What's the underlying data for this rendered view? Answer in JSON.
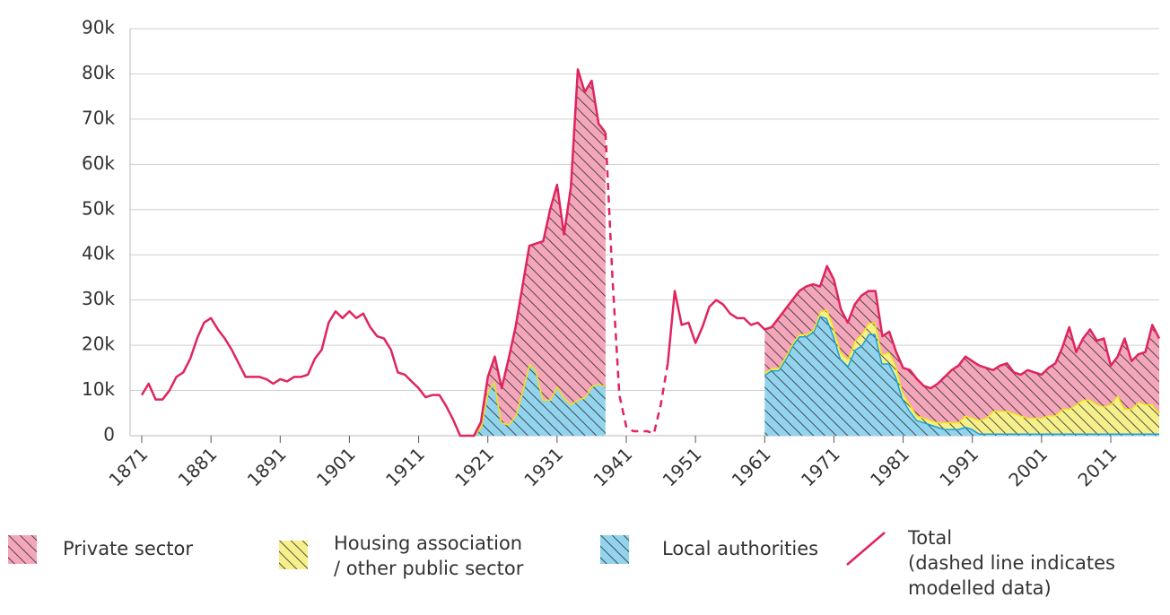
{
  "chart_data": {
    "type": "stacked_area",
    "x": [
      1871,
      1872,
      1873,
      1874,
      1875,
      1876,
      1877,
      1878,
      1879,
      1880,
      1881,
      1882,
      1883,
      1884,
      1885,
      1886,
      1887,
      1888,
      1889,
      1890,
      1891,
      1892,
      1893,
      1894,
      1895,
      1896,
      1897,
      1898,
      1899,
      1900,
      1901,
      1902,
      1903,
      1904,
      1905,
      1906,
      1907,
      1908,
      1909,
      1910,
      1911,
      1912,
      1913,
      1914,
      1915,
      1916,
      1917,
      1918,
      1919,
      1920,
      1921,
      1922,
      1923,
      1924,
      1925,
      1926,
      1927,
      1928,
      1929,
      1930,
      1931,
      1932,
      1933,
      1934,
      1935,
      1936,
      1937,
      1938,
      1939,
      1940,
      1941,
      1942,
      1943,
      1944,
      1945,
      1946,
      1947,
      1948,
      1949,
      1950,
      1951,
      1952,
      1953,
      1954,
      1955,
      1956,
      1957,
      1958,
      1959,
      1960,
      1961,
      1962,
      1963,
      1964,
      1965,
      1966,
      1967,
      1968,
      1969,
      1970,
      1971,
      1972,
      1973,
      1974,
      1975,
      1976,
      1977,
      1978,
      1979,
      1980,
      1981,
      1982,
      1983,
      1984,
      1985,
      1986,
      1987,
      1988,
      1989,
      1990,
      1991,
      1992,
      1993,
      1994,
      1995,
      1996,
      1997,
      1998,
      1999,
      2000,
      2001,
      2002,
      2003,
      2004,
      2005,
      2006,
      2007,
      2008,
      2009,
      2010,
      2011,
      2012,
      2013,
      2014,
      2015,
      2016,
      2017,
      2018
    ],
    "series": [
      {
        "name": "Private sector",
        "color": "#f4a7ba",
        "edge": null,
        "values": [
          null,
          null,
          null,
          null,
          null,
          null,
          null,
          null,
          null,
          null,
          null,
          null,
          null,
          null,
          null,
          null,
          null,
          null,
          null,
          null,
          null,
          null,
          null,
          null,
          null,
          null,
          null,
          null,
          null,
          null,
          null,
          null,
          null,
          null,
          null,
          null,
          null,
          null,
          null,
          null,
          null,
          null,
          null,
          null,
          null,
          null,
          null,
          null,
          0,
          1000,
          3000,
          5500,
          7500,
          14500,
          19500,
          23000,
          26000,
          28000,
          35000,
          42000,
          44500,
          36000,
          48000,
          73000,
          67500,
          67500,
          57500,
          56000,
          null,
          null,
          null,
          null,
          null,
          null,
          null,
          null,
          null,
          null,
          null,
          null,
          null,
          null,
          null,
          null,
          null,
          null,
          null,
          null,
          null,
          null,
          9500,
          9000,
          11000,
          10500,
          9500,
          9500,
          10500,
          10000,
          5500,
          9500,
          10500,
          9500,
          8000,
          8000,
          8500,
          7000,
          7000,
          4000,
          4500,
          3000,
          5500,
          7500,
          8000,
          7000,
          7000,
          8500,
          10000,
          11500,
          12500,
          13000,
          12500,
          12000,
          11000,
          9000,
          10000,
          10500,
          9000,
          9000,
          10500,
          10000,
          9500,
          10500,
          11500,
          13500,
          18000,
          11500,
          13500,
          15500,
          14000,
          15000,
          8500,
          8500,
          15500,
          10500,
          10500,
          11500,
          17500,
          16500
        ]
      },
      {
        "name": "Housing association\n/ other public sector",
        "color": "#f6f08c",
        "edge": "#f2e41c",
        "values": [
          null,
          null,
          null,
          null,
          null,
          null,
          null,
          null,
          null,
          null,
          null,
          null,
          null,
          null,
          null,
          null,
          null,
          null,
          null,
          null,
          null,
          null,
          null,
          null,
          null,
          null,
          null,
          null,
          null,
          null,
          null,
          null,
          null,
          null,
          null,
          null,
          null,
          null,
          null,
          null,
          null,
          null,
          null,
          null,
          null,
          null,
          null,
          null,
          0,
          0,
          0,
          0,
          0,
          0,
          0,
          0,
          0,
          0,
          0,
          0,
          0,
          0,
          0,
          0,
          0,
          0,
          0,
          0,
          null,
          null,
          null,
          null,
          null,
          null,
          null,
          null,
          null,
          null,
          null,
          null,
          null,
          null,
          null,
          null,
          null,
          null,
          null,
          null,
          null,
          null,
          500,
          500,
          500,
          500,
          500,
          500,
          500,
          500,
          1000,
          2000,
          2000,
          1500,
          1500,
          2000,
          2500,
          2500,
          2500,
          2000,
          2500,
          2500,
          1500,
          1500,
          1000,
          1000,
          1000,
          1000,
          1500,
          1500,
          1500,
          2500,
          2500,
          3000,
          3500,
          5000,
          5000,
          5000,
          4500,
          4000,
          3500,
          3500,
          3500,
          4000,
          4000,
          5500,
          5500,
          6500,
          7500,
          7500,
          6500,
          6000,
          6500,
          8500,
          5500,
          5500,
          7000,
          6500,
          6500,
          4500
        ]
      },
      {
        "name": "Local authorities",
        "color": "#92d4ee",
        "edge": "#1ba1d8",
        "values": [
          null,
          null,
          null,
          null,
          null,
          null,
          null,
          null,
          null,
          null,
          null,
          null,
          null,
          null,
          null,
          null,
          null,
          null,
          null,
          null,
          null,
          null,
          null,
          null,
          null,
          null,
          null,
          null,
          null,
          null,
          null,
          null,
          null,
          null,
          null,
          null,
          null,
          null,
          null,
          null,
          null,
          null,
          null,
          null,
          null,
          null,
          null,
          null,
          0,
          2000,
          10000,
          12000,
          3000,
          2500,
          4500,
          10000,
          16000,
          14500,
          8000,
          8000,
          11000,
          8500,
          7000,
          8000,
          8500,
          11000,
          11500,
          11000,
          null,
          null,
          null,
          null,
          null,
          null,
          null,
          null,
          null,
          null,
          null,
          null,
          null,
          null,
          null,
          null,
          null,
          null,
          null,
          null,
          null,
          null,
          13500,
          14500,
          14500,
          17000,
          20000,
          22000,
          22000,
          23000,
          26500,
          26000,
          22000,
          17000,
          15500,
          19000,
          20000,
          22500,
          22500,
          16000,
          16000,
          13000,
          8000,
          5500,
          3500,
          3000,
          2500,
          2000,
          1500,
          1500,
          1500,
          2000,
          1500,
          500,
          500,
          500,
          500,
          500,
          500,
          500,
          500,
          500,
          500,
          500,
          500,
          500,
          500,
          500,
          500,
          500,
          500,
          500,
          500,
          500,
          500,
          500,
          500,
          500,
          500,
          500
        ]
      }
    ],
    "total": {
      "name": "Total\n(dashed line indicates\nmodelled data)",
      "color": "#e0245e",
      "dashed_years": [
        1938,
        1947
      ],
      "values": [
        9000,
        11500,
        8000,
        8000,
        10000,
        13000,
        14000,
        17000,
        21500,
        25000,
        26000,
        23500,
        21500,
        19000,
        16000,
        13000,
        13000,
        13000,
        12500,
        11500,
        12500,
        12000,
        13000,
        13000,
        13500,
        17000,
        19000,
        25000,
        27500,
        26000,
        27500,
        26000,
        27000,
        24000,
        22000,
        21500,
        19000,
        14000,
        13500,
        12000,
        10500,
        8500,
        9000,
        9000,
        6500,
        3500,
        0,
        0,
        0,
        3000,
        13000,
        17500,
        10500,
        17000,
        24000,
        33000,
        42000,
        42500,
        43000,
        50000,
        55500,
        44500,
        55000,
        81000,
        76000,
        78500,
        69000,
        67000,
        35000,
        9000,
        2000,
        1000,
        1000,
        1000,
        500,
        7000,
        16000,
        32000,
        24500,
        25000,
        20500,
        24000,
        28500,
        30000,
        29000,
        27000,
        26000,
        26000,
        24500,
        25000,
        23500,
        24000,
        26000,
        28000,
        30000,
        32000,
        33000,
        33500,
        33000,
        37500,
        34500,
        28000,
        25000,
        29000,
        31000,
        32000,
        32000,
        22000,
        23000,
        18500,
        15000,
        14500,
        12500,
        11000,
        10500,
        11500,
        13000,
        14500,
        15500,
        17500,
        16500,
        15500,
        15000,
        14500,
        15500,
        16000,
        14000,
        13500,
        14500,
        14000,
        13500,
        15000,
        16000,
        19500,
        24000,
        18500,
        21500,
        23500,
        21000,
        21500,
        15500,
        17500,
        21500,
        16500,
        18000,
        18500,
        24500,
        21500
      ]
    },
    "xlim": [
      1871,
      2018
    ],
    "xticks": [
      1871,
      1881,
      1891,
      1901,
      1911,
      1921,
      1931,
      1941,
      1951,
      1961,
      1971,
      1981,
      1991,
      2001,
      2011
    ],
    "ylim": [
      0,
      90000
    ],
    "yticks": [
      0,
      {
        "value": 10000,
        "label": "10k"
      },
      {
        "value": 20000,
        "label": "20k"
      },
      {
        "value": 30000,
        "label": "30k"
      },
      {
        "value": 40000,
        "label": "40k"
      },
      {
        "value": 50000,
        "label": "50k"
      },
      {
        "value": 60000,
        "label": "60k"
      },
      {
        "value": 70000,
        "label": "70k"
      },
      {
        "value": 80000,
        "label": "80k"
      },
      {
        "value": 90000,
        "label": "90k"
      }
    ],
    "grid": true
  }
}
